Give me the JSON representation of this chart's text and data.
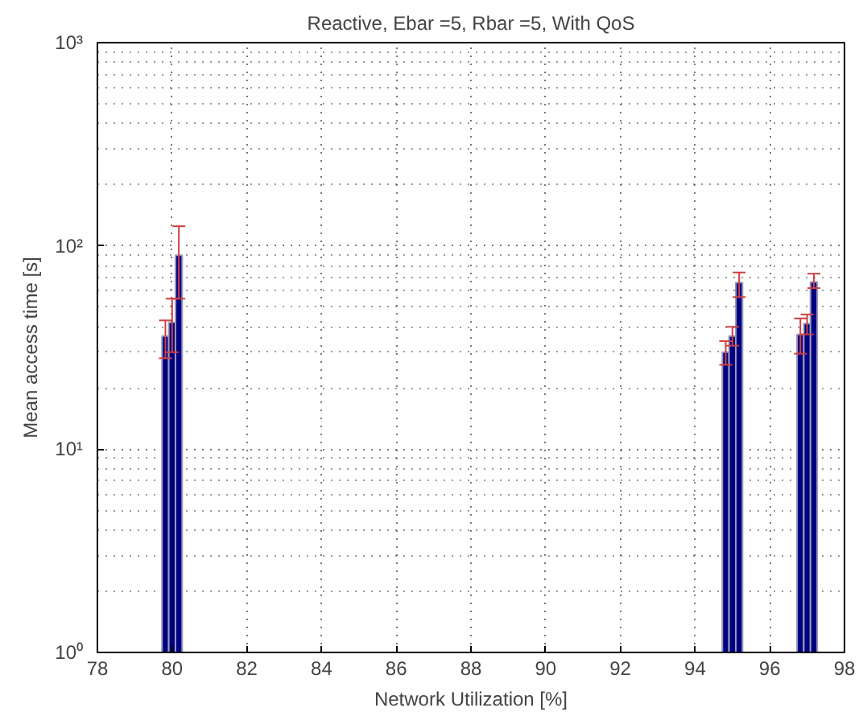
{
  "chart_data": {
    "type": "bar",
    "title": "Reactive, Ebar =5, Rbar =5, With QoS",
    "xlabel": "Network Utilization [%]",
    "ylabel": "Mean access time [s]",
    "series": [
      {
        "color": "#000080",
        "x": [
          79.82,
          94.82,
          96.82
        ],
        "values": [
          36,
          30,
          36.7
        ],
        "errors": [
          [
            28,
            43
          ],
          [
            26,
            34
          ],
          [
            29.5,
            44
          ]
        ]
      },
      {
        "color": "#000080",
        "x": [
          80,
          95,
          97
        ],
        "values": [
          42,
          36,
          41.5
        ],
        "errors": [
          [
            30,
            55
          ],
          [
            32.3,
            40
          ],
          [
            36.7,
            46
          ]
        ]
      },
      {
        "color": "#000080",
        "x": [
          80.18,
          95.18,
          97.18
        ],
        "values": [
          90,
          66,
          66.5
        ],
        "errors": [
          [
            55,
            125
          ],
          [
            56,
            74
          ],
          [
            62,
            73
          ]
        ]
      }
    ],
    "xlim": [
      78,
      98
    ],
    "xticks": [
      78,
      80,
      82,
      84,
      86,
      88,
      90,
      92,
      94,
      96,
      98
    ],
    "ylim": [
      1,
      1000
    ],
    "yticks": [
      {
        "value": 1,
        "label": "10⁰"
      },
      {
        "value": 10,
        "label": "10¹"
      },
      {
        "value": 100,
        "label": "10²"
      },
      {
        "value": 1000,
        "label": "10³"
      }
    ],
    "log": "y",
    "grid": true
  }
}
